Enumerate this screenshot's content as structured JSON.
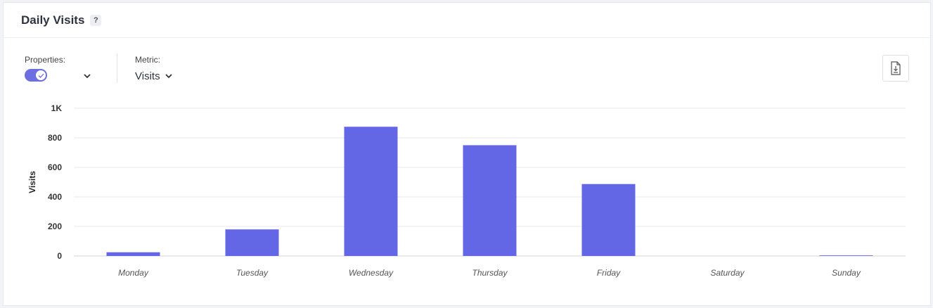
{
  "header": {
    "title": "Daily Visits",
    "help_label": "?"
  },
  "controls": {
    "properties_label": "Properties:",
    "properties_toggle_on": true,
    "metric_label": "Metric:",
    "metric_value": "Visits"
  },
  "icons": {
    "help": "question-icon",
    "toggle_check": "check-icon",
    "dropdown": "chevron-down-icon",
    "download": "download-file-icon"
  },
  "colors": {
    "bar": "#6366e5",
    "grid": "#e8eaee",
    "toggle": "#6b6fe0"
  },
  "chart_data": {
    "type": "bar",
    "categories": [
      "Monday",
      "Tuesday",
      "Wednesday",
      "Thursday",
      "Friday",
      "Saturday",
      "Sunday"
    ],
    "series": [
      {
        "values": [
          25,
          180,
          875,
          750,
          487,
          0,
          4
        ]
      }
    ],
    "ylabel": "Visits",
    "ylim": [
      0,
      1000
    ],
    "yticks": [
      0,
      200,
      400,
      600,
      800,
      1000
    ],
    "ytick_labels": [
      "0",
      "200",
      "400",
      "600",
      "800",
      "1K"
    ],
    "grid": true,
    "legend": "none"
  }
}
